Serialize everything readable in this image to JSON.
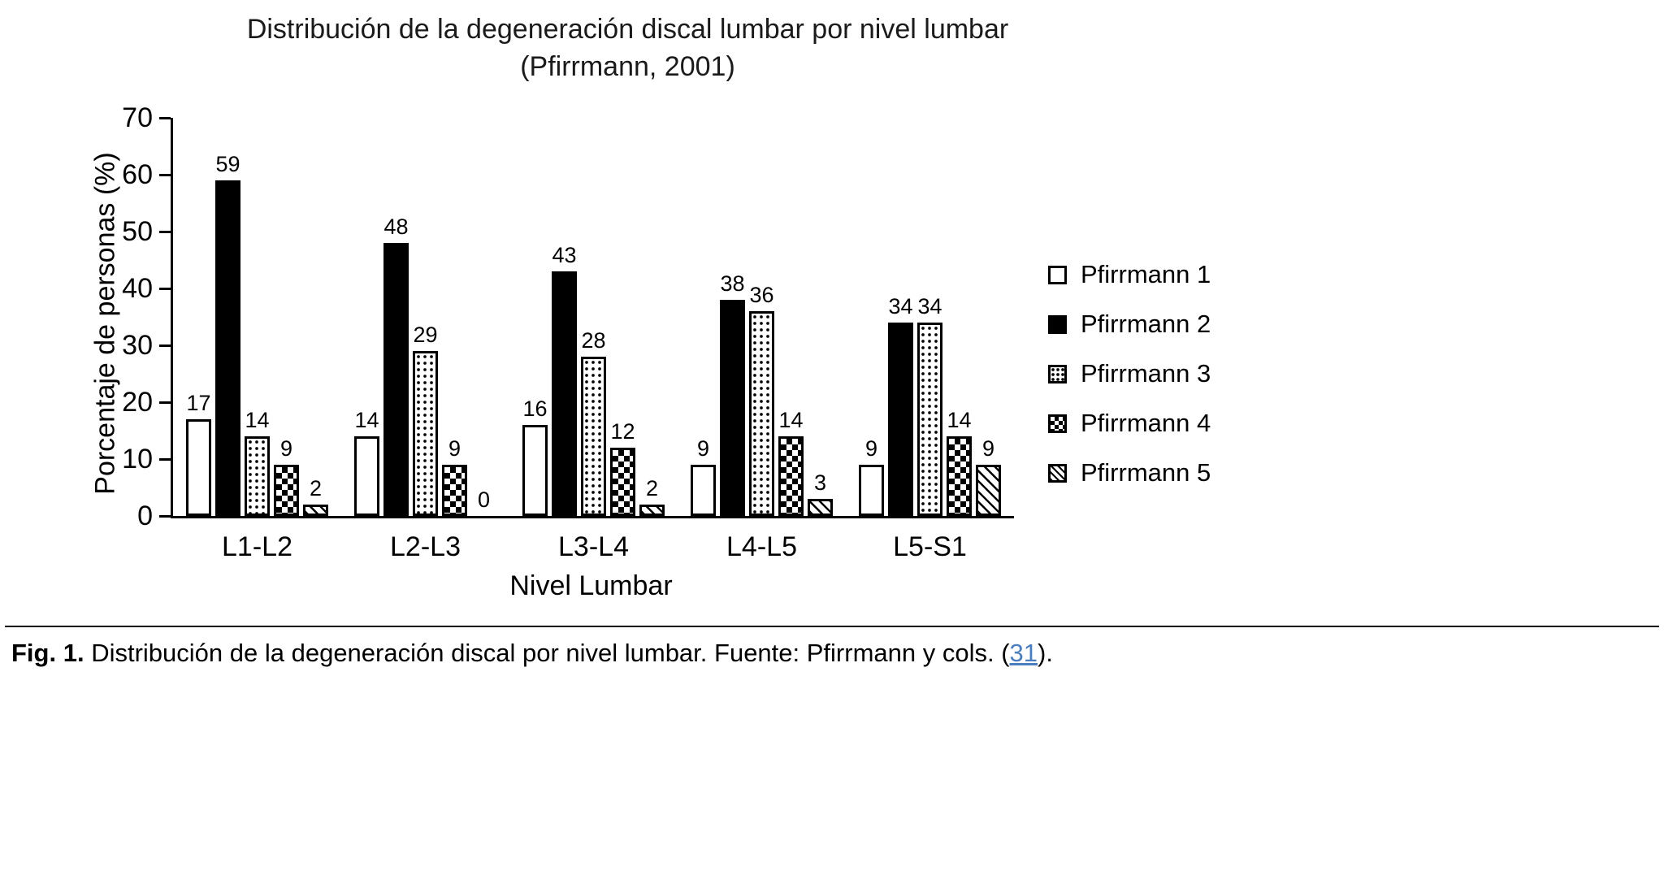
{
  "title": {
    "line1": "Distribución de la degeneración discal lumbar por nivel lumbar",
    "line2": "(Pfirrmann, 2001)"
  },
  "chart_data": {
    "type": "bar",
    "title": "Distribución de la degeneración discal lumbar por nivel lumbar (Pfirrmann, 2001)",
    "xlabel": "Nivel Lumbar",
    "ylabel": "Porcentaje de personas (%)",
    "ylim": [
      0,
      70
    ],
    "yticks": [
      0,
      10,
      20,
      30,
      40,
      50,
      60,
      70
    ],
    "grid": false,
    "legend_position": "right",
    "categories": [
      "L1-L2",
      "L2-L3",
      "L3-L4",
      "L4-L5",
      "L5-S1"
    ],
    "series": [
      {
        "name": "Pfirrmann 1",
        "pattern": "outline-white",
        "values": [
          17,
          14,
          16,
          9,
          9
        ]
      },
      {
        "name": "Pfirrmann 2",
        "pattern": "solid-black",
        "values": [
          59,
          48,
          43,
          38,
          34
        ]
      },
      {
        "name": "Pfirrmann 3",
        "pattern": "dots",
        "values": [
          14,
          29,
          28,
          36,
          34
        ]
      },
      {
        "name": "Pfirrmann 4",
        "pattern": "checkerboard",
        "values": [
          9,
          9,
          12,
          14,
          14
        ]
      },
      {
        "name": "Pfirrmann 5",
        "pattern": "diagonal-hatch",
        "values": [
          2,
          0,
          2,
          3,
          9
        ]
      }
    ],
    "bar_color": "#000000",
    "axis_color": "#000000"
  },
  "caption": {
    "fig_label": "Fig. 1.",
    "body": "Distribución de la degeneración discal por nivel lumbar. Fuente: Pfirrmann y cols. (",
    "link_text": "31",
    "suffix": ").",
    "link_color": "#4a7ebf"
  }
}
